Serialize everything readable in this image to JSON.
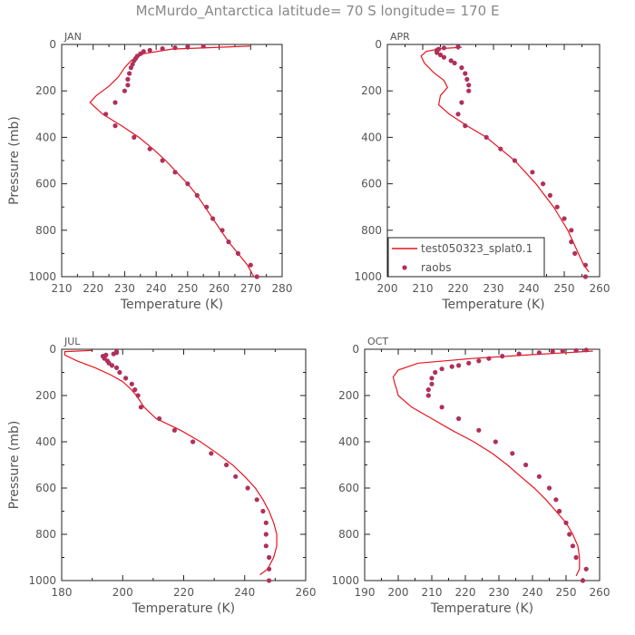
{
  "figure": {
    "title": "McMurdo_Antarctica   latitude=  70 S longitude=  170 E",
    "colors": {
      "model": "#e8141e",
      "obs": "#b0305a",
      "text": "#555555",
      "title": "#888888"
    }
  },
  "chart_data": [
    {
      "type": "line",
      "panel": "JAN",
      "xlabel": "Temperature  (K)",
      "ylabel": "Pressure  (mb)",
      "xlim": [
        210,
        280
      ],
      "ylim": [
        1000,
        0
      ],
      "xticks": [
        210,
        220,
        230,
        240,
        250,
        260,
        270,
        280
      ],
      "yticks": [
        0,
        200,
        400,
        600,
        800,
        1000
      ],
      "series": [
        {
          "name": "test050323_splat0.1",
          "kind": "line",
          "points": [
            [
              271,
              1000
            ],
            [
              269,
              950
            ],
            [
              266,
              900
            ],
            [
              263,
              850
            ],
            [
              260.5,
              800
            ],
            [
              258,
              750
            ],
            [
              255.5,
              700
            ],
            [
              253,
              650
            ],
            [
              250,
              600
            ],
            [
              246.5,
              550
            ],
            [
              243,
              500
            ],
            [
              239,
              450
            ],
            [
              234.5,
              400
            ],
            [
              229,
              350
            ],
            [
              223,
              300
            ],
            [
              219,
              250
            ],
            [
              221,
              220
            ],
            [
              225,
              180
            ],
            [
              228,
              140
            ],
            [
              230,
              100
            ],
            [
              232,
              70
            ],
            [
              236,
              40
            ],
            [
              245,
              20
            ],
            [
              270,
              7
            ]
          ]
        },
        {
          "name": "raobs",
          "kind": "scatter",
          "points": [
            [
              272,
              1000
            ],
            [
              270,
              950
            ],
            [
              266,
              900
            ],
            [
              263,
              850
            ],
            [
              261,
              800
            ],
            [
              258,
              750
            ],
            [
              256,
              700
            ],
            [
              253,
              650
            ],
            [
              250,
              600
            ],
            [
              246,
              550
            ],
            [
              242,
              500
            ],
            [
              238,
              450
            ],
            [
              233,
              400
            ],
            [
              227,
              350
            ],
            [
              224,
              300
            ],
            [
              227,
              250
            ],
            [
              230,
              200
            ],
            [
              231,
              175
            ],
            [
              231,
              150
            ],
            [
              231.5,
              125
            ],
            [
              232,
              100
            ],
            [
              232.5,
              85
            ],
            [
              233,
              70
            ],
            [
              233.5,
              60
            ],
            [
              234,
              50
            ],
            [
              235,
              40
            ],
            [
              236,
              30
            ],
            [
              238,
              25
            ],
            [
              242,
              18
            ],
            [
              246,
              14
            ],
            [
              250,
              10
            ],
            [
              255,
              8
            ]
          ]
        }
      ]
    },
    {
      "type": "line",
      "panel": "APR",
      "xlabel": "Temperature  (K)",
      "ylabel": "",
      "xlim": [
        200,
        260
      ],
      "ylim": [
        1000,
        0
      ],
      "xticks": [
        200,
        210,
        220,
        230,
        240,
        250,
        260
      ],
      "yticks": [
        0,
        200,
        400,
        600,
        800,
        1000
      ],
      "legend": {
        "position": "lower-left",
        "entries": [
          "test050323_splat0.1",
          "raobs"
        ]
      },
      "series": [
        {
          "name": "test050323_splat0.1",
          "kind": "line",
          "points": [
            [
              257,
              980
            ],
            [
              255.5,
              950
            ],
            [
              254,
              900
            ],
            [
              252.5,
              850
            ],
            [
              251,
              800
            ],
            [
              249,
              750
            ],
            [
              247,
              700
            ],
            [
              244.5,
              650
            ],
            [
              242,
              600
            ],
            [
              239,
              550
            ],
            [
              236,
              500
            ],
            [
              232,
              450
            ],
            [
              228,
              400
            ],
            [
              222.5,
              350
            ],
            [
              217.5,
              300
            ],
            [
              214.5,
              260
            ],
            [
              215,
              220
            ],
            [
              217,
              185
            ],
            [
              216,
              155
            ],
            [
              213,
              120
            ],
            [
              210.5,
              80
            ],
            [
              209.5,
              50
            ],
            [
              211,
              30
            ],
            [
              215,
              18
            ],
            [
              221,
              12
            ]
          ]
        },
        {
          "name": "raobs",
          "kind": "scatter",
          "points": [
            [
              256,
              1000
            ],
            [
              256,
              950
            ],
            [
              253,
              900
            ],
            [
              252,
              850
            ],
            [
              252,
              800
            ],
            [
              250,
              750
            ],
            [
              248,
              700
            ],
            [
              246,
              650
            ],
            [
              244,
              600
            ],
            [
              241,
              550
            ],
            [
              236,
              500
            ],
            [
              232,
              450
            ],
            [
              228,
              400
            ],
            [
              222,
              350
            ],
            [
              220,
              300
            ],
            [
              221,
              250
            ],
            [
              223,
              200
            ],
            [
              223,
              175
            ],
            [
              222.5,
              150
            ],
            [
              222,
              125
            ],
            [
              221,
              100
            ],
            [
              219,
              80
            ],
            [
              218,
              70
            ],
            [
              216,
              55
            ],
            [
              215,
              45
            ],
            [
              214,
              35
            ],
            [
              214,
              30
            ],
            [
              214,
              25
            ],
            [
              214.5,
              20
            ],
            [
              216,
              15
            ],
            [
              220,
              10
            ]
          ]
        }
      ]
    },
    {
      "type": "line",
      "panel": "JUL",
      "xlabel": "Temperature  (K)",
      "ylabel": "Pressure  (mb)",
      "xlim": [
        180,
        260
      ],
      "ylim": [
        1000,
        0
      ],
      "xticks": [
        180,
        200,
        220,
        240,
        260
      ],
      "yticks": [
        0,
        200,
        400,
        600,
        800,
        1000
      ],
      "series": [
        {
          "name": "test050323_splat0.1",
          "kind": "line",
          "points": [
            [
              245,
              975
            ],
            [
              247.5,
              950
            ],
            [
              249.5,
              900
            ],
            [
              250.5,
              850
            ],
            [
              250.5,
              800
            ],
            [
              249.5,
              750
            ],
            [
              248,
              700
            ],
            [
              246,
              650
            ],
            [
              243.5,
              600
            ],
            [
              240,
              550
            ],
            [
              236,
              500
            ],
            [
              231,
              450
            ],
            [
              225.5,
              400
            ],
            [
              219,
              350
            ],
            [
              211,
              300
            ],
            [
              207,
              250
            ],
            [
              204.5,
              200
            ],
            [
              202.5,
              170
            ],
            [
              200,
              140
            ],
            [
              196,
              110
            ],
            [
              191,
              80
            ],
            [
              185,
              50
            ],
            [
              181,
              25
            ],
            [
              181,
              10
            ],
            [
              190,
              5
            ]
          ]
        },
        {
          "name": "raobs",
          "kind": "scatter",
          "points": [
            [
              248,
              1000
            ],
            [
              248,
              950
            ],
            [
              248,
              900
            ],
            [
              247,
              850
            ],
            [
              247,
              800
            ],
            [
              247,
              750
            ],
            [
              246,
              700
            ],
            [
              244,
              650
            ],
            [
              241,
              600
            ],
            [
              237,
              550
            ],
            [
              234,
              500
            ],
            [
              229,
              450
            ],
            [
              223,
              400
            ],
            [
              217,
              350
            ],
            [
              212,
              300
            ],
            [
              206,
              250
            ],
            [
              205,
              200
            ],
            [
              204,
              175
            ],
            [
              203,
              150
            ],
            [
              201,
              125
            ],
            [
              199,
              100
            ],
            [
              198,
              80
            ],
            [
              196.5,
              70
            ],
            [
              195.5,
              60
            ],
            [
              195,
              50
            ],
            [
              194,
              40
            ],
            [
              193.5,
              30
            ],
            [
              194.5,
              25
            ],
            [
              197,
              20
            ],
            [
              198,
              15
            ],
            [
              198,
              10
            ]
          ]
        }
      ]
    },
    {
      "type": "line",
      "panel": "OCT",
      "xlabel": "Temperature  (K)",
      "ylabel": "",
      "xlim": [
        190,
        260
      ],
      "ylim": [
        1000,
        0
      ],
      "xticks": [
        190,
        200,
        210,
        220,
        230,
        240,
        250,
        260
      ],
      "yticks": [
        0,
        200,
        400,
        600,
        800,
        1000
      ],
      "series": [
        {
          "name": "test050323_splat0.1",
          "kind": "line",
          "points": [
            [
              253,
              980
            ],
            [
              254,
              950
            ],
            [
              254,
              900
            ],
            [
              253.5,
              850
            ],
            [
              252,
              800
            ],
            [
              250,
              750
            ],
            [
              247,
              700
            ],
            [
              244,
              650
            ],
            [
              240.5,
              600
            ],
            [
              236.5,
              550
            ],
            [
              232.5,
              500
            ],
            [
              228,
              450
            ],
            [
              222.5,
              400
            ],
            [
              216,
              350
            ],
            [
              210,
              300
            ],
            [
              204,
              250
            ],
            [
              200,
              200
            ],
            [
              199.5,
              170
            ],
            [
              199,
              150
            ],
            [
              198.5,
              120
            ],
            [
              200,
              90
            ],
            [
              206,
              60
            ],
            [
              222,
              40
            ],
            [
              238,
              25
            ],
            [
              250,
              15
            ],
            [
              258,
              8
            ]
          ]
        },
        {
          "name": "raobs",
          "kind": "scatter",
          "points": [
            [
              255,
              1000
            ],
            [
              256,
              950
            ],
            [
              253,
              900
            ],
            [
              252,
              850
            ],
            [
              251,
              800
            ],
            [
              250,
              750
            ],
            [
              248,
              700
            ],
            [
              247,
              650
            ],
            [
              245,
              600
            ],
            [
              242,
              550
            ],
            [
              238,
              500
            ],
            [
              234,
              450
            ],
            [
              229,
              400
            ],
            [
              224,
              350
            ],
            [
              218,
              300
            ],
            [
              213,
              250
            ],
            [
              209,
              200
            ],
            [
              209,
              175
            ],
            [
              210,
              150
            ],
            [
              210,
              125
            ],
            [
              211,
              100
            ],
            [
              213,
              85
            ],
            [
              216,
              75
            ],
            [
              218,
              70
            ],
            [
              221,
              60
            ],
            [
              224,
              50
            ],
            [
              227,
              40
            ],
            [
              231,
              30
            ],
            [
              236,
              20
            ],
            [
              242,
              15
            ],
            [
              246,
              10
            ],
            [
              249,
              8
            ],
            [
              253,
              5
            ],
            [
              256,
              3
            ]
          ]
        }
      ]
    }
  ]
}
